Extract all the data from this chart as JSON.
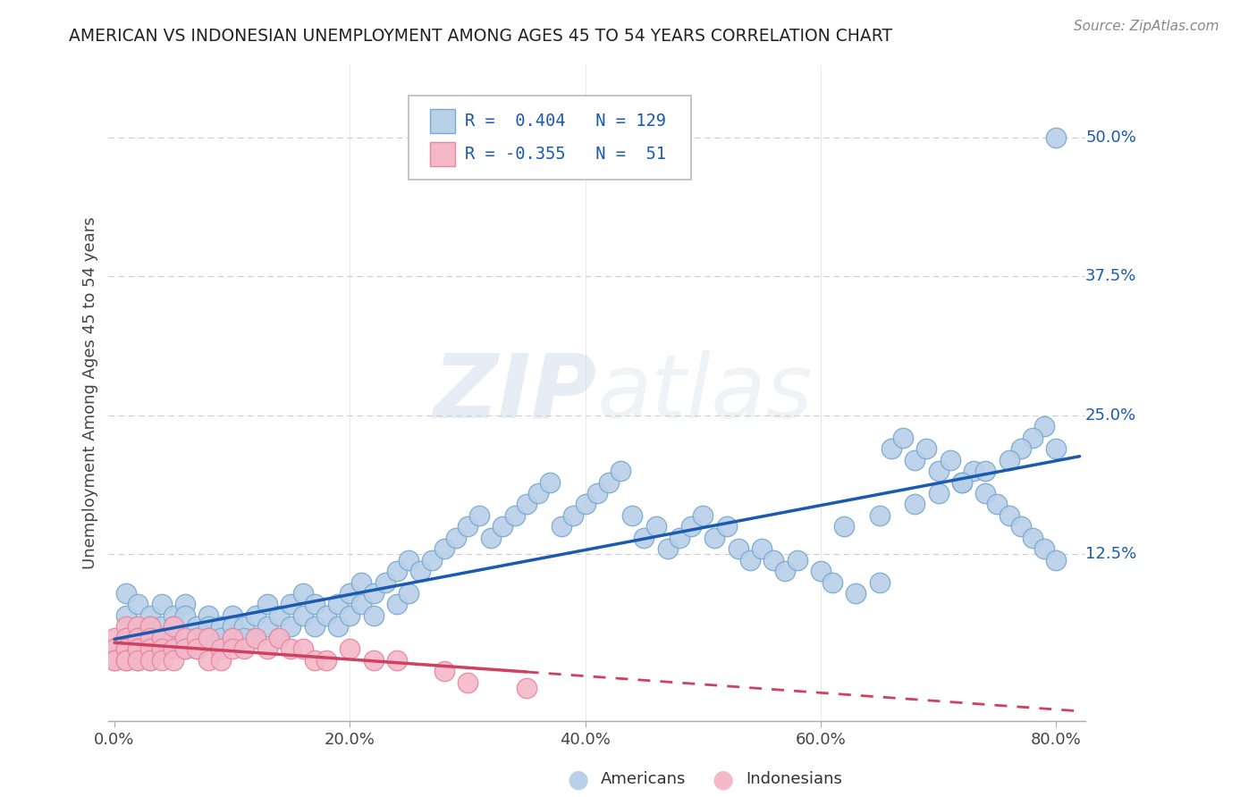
{
  "title": "AMERICAN VS INDONESIAN UNEMPLOYMENT AMONG AGES 45 TO 54 YEARS CORRELATION CHART",
  "source": "Source: ZipAtlas.com",
  "ylabel": "Unemployment Among Ages 45 to 54 years",
  "xlim": [
    -0.005,
    0.825
  ],
  "ylim": [
    -0.025,
    0.565
  ],
  "xticks": [
    0.0,
    0.2,
    0.4,
    0.6,
    0.8
  ],
  "xtick_labels": [
    "0.0%",
    "20.0%",
    "40.0%",
    "60.0%",
    "80.0%"
  ],
  "ytick_vals": [
    0.125,
    0.25,
    0.375,
    0.5
  ],
  "ytick_labels": [
    "12.5%",
    "25.0%",
    "37.5%",
    "50.0%"
  ],
  "american_fill": "#b8d0e8",
  "american_edge": "#7aaad0",
  "indonesian_fill": "#f4b8c8",
  "indonesian_edge": "#e888a0",
  "american_line_color": "#1a5ab0",
  "indonesian_line_color": "#d04060",
  "watermark_color": "#dce8f0",
  "grid_color": "#cccccc",
  "background_color": "#ffffff",
  "legend_r1": "R =  0.404",
  "legend_n1": "N = 129",
  "legend_r2": "R = -0.355",
  "legend_n2": "N =  51",
  "am_x": [
    0.01,
    0.01,
    0.01,
    0.02,
    0.02,
    0.02,
    0.02,
    0.02,
    0.03,
    0.03,
    0.03,
    0.03,
    0.03,
    0.04,
    0.04,
    0.04,
    0.04,
    0.05,
    0.05,
    0.05,
    0.05,
    0.06,
    0.06,
    0.06,
    0.06,
    0.07,
    0.07,
    0.07,
    0.08,
    0.08,
    0.08,
    0.09,
    0.09,
    0.09,
    0.1,
    0.1,
    0.1,
    0.11,
    0.11,
    0.12,
    0.12,
    0.13,
    0.13,
    0.14,
    0.14,
    0.15,
    0.15,
    0.16,
    0.16,
    0.17,
    0.17,
    0.18,
    0.19,
    0.19,
    0.2,
    0.2,
    0.21,
    0.21,
    0.22,
    0.22,
    0.23,
    0.24,
    0.24,
    0.25,
    0.25,
    0.26,
    0.27,
    0.28,
    0.29,
    0.3,
    0.31,
    0.32,
    0.33,
    0.34,
    0.35,
    0.36,
    0.37,
    0.38,
    0.39,
    0.4,
    0.41,
    0.42,
    0.43,
    0.44,
    0.45,
    0.46,
    0.47,
    0.48,
    0.49,
    0.5,
    0.51,
    0.52,
    0.53,
    0.54,
    0.55,
    0.56,
    0.57,
    0.58,
    0.6,
    0.61,
    0.63,
    0.65,
    0.66,
    0.67,
    0.68,
    0.69,
    0.7,
    0.71,
    0.72,
    0.73,
    0.74,
    0.75,
    0.76,
    0.77,
    0.78,
    0.79,
    0.8,
    0.8,
    0.8,
    0.79,
    0.78,
    0.77,
    0.76,
    0.74,
    0.72,
    0.7,
    0.68,
    0.65,
    0.62
  ],
  "am_y": [
    0.09,
    0.07,
    0.05,
    0.08,
    0.06,
    0.05,
    0.04,
    0.03,
    0.07,
    0.06,
    0.05,
    0.04,
    0.03,
    0.08,
    0.06,
    0.05,
    0.04,
    0.07,
    0.06,
    0.05,
    0.04,
    0.08,
    0.07,
    0.05,
    0.04,
    0.06,
    0.05,
    0.04,
    0.07,
    0.06,
    0.05,
    0.06,
    0.05,
    0.04,
    0.07,
    0.06,
    0.05,
    0.06,
    0.05,
    0.07,
    0.05,
    0.08,
    0.06,
    0.07,
    0.05,
    0.08,
    0.06,
    0.09,
    0.07,
    0.08,
    0.06,
    0.07,
    0.08,
    0.06,
    0.09,
    0.07,
    0.1,
    0.08,
    0.09,
    0.07,
    0.1,
    0.11,
    0.08,
    0.12,
    0.09,
    0.11,
    0.12,
    0.13,
    0.14,
    0.15,
    0.16,
    0.14,
    0.15,
    0.16,
    0.17,
    0.18,
    0.19,
    0.15,
    0.16,
    0.17,
    0.18,
    0.19,
    0.2,
    0.16,
    0.14,
    0.15,
    0.13,
    0.14,
    0.15,
    0.16,
    0.14,
    0.15,
    0.13,
    0.12,
    0.13,
    0.12,
    0.11,
    0.12,
    0.11,
    0.1,
    0.09,
    0.1,
    0.22,
    0.23,
    0.21,
    0.22,
    0.2,
    0.21,
    0.19,
    0.2,
    0.18,
    0.17,
    0.16,
    0.15,
    0.14,
    0.13,
    0.12,
    0.22,
    0.5,
    0.24,
    0.23,
    0.22,
    0.21,
    0.2,
    0.19,
    0.18,
    0.17,
    0.16,
    0.15
  ],
  "in_x": [
    0.0,
    0.0,
    0.0,
    0.0,
    0.0,
    0.01,
    0.01,
    0.01,
    0.01,
    0.01,
    0.01,
    0.01,
    0.02,
    0.02,
    0.02,
    0.02,
    0.02,
    0.03,
    0.03,
    0.03,
    0.03,
    0.04,
    0.04,
    0.04,
    0.05,
    0.05,
    0.05,
    0.06,
    0.06,
    0.07,
    0.07,
    0.08,
    0.08,
    0.09,
    0.09,
    0.1,
    0.1,
    0.11,
    0.12,
    0.13,
    0.14,
    0.15,
    0.16,
    0.17,
    0.18,
    0.2,
    0.22,
    0.24,
    0.28,
    0.3,
    0.35
  ],
  "in_y": [
    0.05,
    0.04,
    0.04,
    0.03,
    0.03,
    0.06,
    0.05,
    0.05,
    0.04,
    0.04,
    0.03,
    0.03,
    0.06,
    0.05,
    0.04,
    0.04,
    0.03,
    0.06,
    0.05,
    0.04,
    0.03,
    0.05,
    0.04,
    0.03,
    0.06,
    0.04,
    0.03,
    0.05,
    0.04,
    0.05,
    0.04,
    0.05,
    0.03,
    0.04,
    0.03,
    0.05,
    0.04,
    0.04,
    0.05,
    0.04,
    0.05,
    0.04,
    0.04,
    0.03,
    0.03,
    0.04,
    0.03,
    0.03,
    0.02,
    0.01,
    0.005
  ]
}
